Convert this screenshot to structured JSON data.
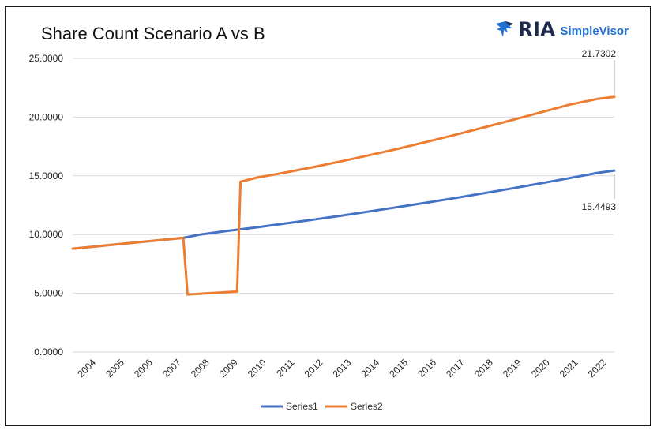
{
  "header": {
    "title": "Share Count Scenario A vs B"
  },
  "logo": {
    "ria_text": "RIA",
    "simplevisor_text": "SimpleVisor"
  },
  "colors": {
    "series1": "#4472c4",
    "series2": "#ed7d31",
    "grid": "#d9d9d9",
    "leader": "#a6a6a6"
  },
  "chart_data": {
    "type": "line",
    "title": "Share Count Scenario A vs B",
    "xlabel": "",
    "ylabel": "",
    "ylim": [
      0,
      25
    ],
    "y_ticks": [
      "0.0000",
      "5.0000",
      "10.0000",
      "15.0000",
      "20.0000",
      "25.0000"
    ],
    "x_ticks": [
      "2004",
      "2005",
      "2006",
      "2007",
      "2008",
      "2009",
      "2010",
      "2011",
      "2012",
      "2013",
      "2014",
      "2015",
      "2016",
      "2017",
      "2018",
      "2019",
      "2020",
      "2021",
      "2022"
    ],
    "grid": true,
    "legend_position": "bottom",
    "series": [
      {
        "name": "Series1",
        "points": [
          [
            2003.5,
            8.8
          ],
          [
            2007.4,
            9.72
          ],
          [
            2008.0,
            10.0
          ],
          [
            2009.0,
            10.32
          ],
          [
            2010.0,
            10.62
          ],
          [
            2011.0,
            10.95
          ],
          [
            2012.0,
            11.28
          ],
          [
            2013.0,
            11.62
          ],
          [
            2014.0,
            11.98
          ],
          [
            2015.0,
            12.35
          ],
          [
            2016.0,
            12.73
          ],
          [
            2017.0,
            13.12
          ],
          [
            2018.0,
            13.52
          ],
          [
            2019.0,
            13.93
          ],
          [
            2020.0,
            14.36
          ],
          [
            2021.0,
            14.8
          ],
          [
            2022.0,
            15.25
          ],
          [
            2022.6,
            15.4493
          ]
        ]
      },
      {
        "name": "Series2",
        "points": [
          [
            2003.5,
            8.8
          ],
          [
            2007.4,
            9.72
          ],
          [
            2007.55,
            4.9
          ],
          [
            2009.3,
            5.15
          ],
          [
            2009.42,
            14.5
          ],
          [
            2010.0,
            14.85
          ],
          [
            2011.0,
            15.28
          ],
          [
            2012.0,
            15.75
          ],
          [
            2013.0,
            16.25
          ],
          [
            2014.0,
            16.78
          ],
          [
            2015.0,
            17.32
          ],
          [
            2016.0,
            17.9
          ],
          [
            2017.0,
            18.5
          ],
          [
            2018.0,
            19.12
          ],
          [
            2019.0,
            19.75
          ],
          [
            2020.0,
            20.4
          ],
          [
            2021.0,
            21.05
          ],
          [
            2022.0,
            21.55
          ],
          [
            2022.6,
            21.7302
          ]
        ]
      }
    ],
    "annotations": [
      {
        "series": "Series2",
        "text": "21.7302"
      },
      {
        "series": "Series1",
        "text": "15.4493"
      }
    ]
  }
}
